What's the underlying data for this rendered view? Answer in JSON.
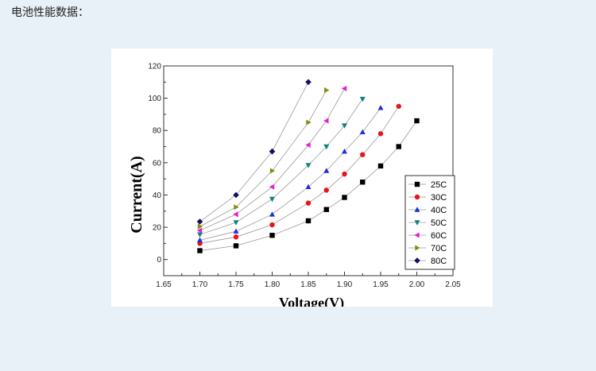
{
  "page": {
    "heading": "电池性能数据："
  },
  "chart_data": {
    "type": "scatter",
    "xlabel": "Voltage(V)",
    "ylabel": "Current(A)",
    "xlim": [
      1.65,
      2.05
    ],
    "ylim": [
      -10,
      120
    ],
    "x_ticks": [
      "1.65",
      "1.70",
      "1.75",
      "1.80",
      "1.85",
      "1.90",
      "1.95",
      "2.00",
      "2.05"
    ],
    "y_ticks": [
      "0",
      "20",
      "40",
      "60",
      "80",
      "100",
      "120"
    ],
    "grid": false,
    "legend_position": "bottom-right",
    "lines_connect_points": true,
    "series": [
      {
        "name": "25C",
        "marker": "square",
        "color": "#000000",
        "points": [
          [
            1.7,
            5.5
          ],
          [
            1.75,
            8.5
          ],
          [
            1.8,
            15
          ],
          [
            1.85,
            24
          ],
          [
            1.875,
            31
          ],
          [
            1.9,
            38.5
          ],
          [
            1.925,
            48
          ],
          [
            1.95,
            58
          ],
          [
            1.975,
            70
          ],
          [
            2.0,
            86
          ]
        ]
      },
      {
        "name": "30C",
        "marker": "circle",
        "color": "#e8141c",
        "points": [
          [
            1.7,
            10
          ],
          [
            1.75,
            14
          ],
          [
            1.8,
            21.5
          ],
          [
            1.85,
            35
          ],
          [
            1.875,
            43
          ],
          [
            1.9,
            53
          ],
          [
            1.925,
            65
          ],
          [
            1.95,
            78
          ],
          [
            1.975,
            95
          ]
        ]
      },
      {
        "name": "40C",
        "marker": "triangle-up",
        "color": "#1a2fd8",
        "points": [
          [
            1.7,
            12
          ],
          [
            1.75,
            17.5
          ],
          [
            1.8,
            28
          ],
          [
            1.85,
            45
          ],
          [
            1.875,
            55
          ],
          [
            1.9,
            67
          ],
          [
            1.925,
            79
          ],
          [
            1.95,
            94
          ]
        ]
      },
      {
        "name": "50C",
        "marker": "triangle-down",
        "color": "#0e8080",
        "points": [
          [
            1.7,
            15.5
          ],
          [
            1.75,
            23
          ],
          [
            1.8,
            37.5
          ],
          [
            1.85,
            58.5
          ],
          [
            1.875,
            70
          ],
          [
            1.9,
            83
          ],
          [
            1.925,
            99.5
          ]
        ]
      },
      {
        "name": "60C",
        "marker": "triangle-left",
        "color": "#e020d8",
        "points": [
          [
            1.7,
            18
          ],
          [
            1.75,
            28
          ],
          [
            1.8,
            45
          ],
          [
            1.85,
            71
          ],
          [
            1.875,
            86
          ],
          [
            1.9,
            106
          ]
        ]
      },
      {
        "name": "70C",
        "marker": "triangle-right",
        "color": "#8a8a10",
        "points": [
          [
            1.7,
            20.5
          ],
          [
            1.75,
            32.5
          ],
          [
            1.8,
            55
          ],
          [
            1.85,
            85
          ],
          [
            1.875,
            105
          ]
        ]
      },
      {
        "name": "80C",
        "marker": "diamond",
        "color": "#101060",
        "points": [
          [
            1.7,
            23.5
          ],
          [
            1.75,
            40
          ],
          [
            1.8,
            67
          ],
          [
            1.85,
            110
          ]
        ]
      }
    ]
  }
}
